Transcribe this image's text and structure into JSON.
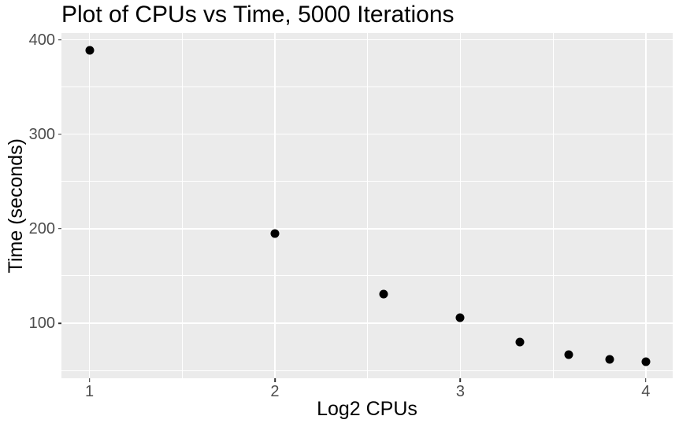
{
  "chart": {
    "title": "Plot of CPUs vs Time, 5000 Iterations",
    "xlabel": "Log2 CPUs",
    "ylabel": "Time (seconds)"
  },
  "chart_data": {
    "type": "scatter",
    "title": "Plot of CPUs vs Time, 5000 Iterations",
    "xlabel": "Log2 CPUs",
    "ylabel": "Time (seconds)",
    "x": [
      1,
      2,
      2.585,
      3,
      3.322,
      3.585,
      3.807,
      4
    ],
    "y": [
      389,
      195,
      131,
      106,
      80,
      67,
      62,
      59
    ],
    "x_tick_values": [
      1,
      2,
      3,
      4
    ],
    "x_tick_labels": [
      "1",
      "2",
      "3",
      "4"
    ],
    "y_tick_values": [
      100,
      200,
      300,
      400
    ],
    "y_tick_labels": [
      "100",
      "200",
      "300",
      "400"
    ],
    "x_minor_ticks": [
      1.5,
      2.5,
      3.5
    ],
    "y_minor_ticks": [
      50,
      150,
      250,
      350
    ],
    "xlim": [
      0.849,
      4.145
    ],
    "ylim": [
      41.7,
      407.1
    ],
    "grid": true,
    "legend": false,
    "colors": {
      "panel_bg": "#EBEBEB",
      "grid": "#FFFFFF",
      "point": "#000000",
      "tick_text": "#4D4D4D",
      "tick_mark": "#333333",
      "title_text": "#000000"
    }
  }
}
